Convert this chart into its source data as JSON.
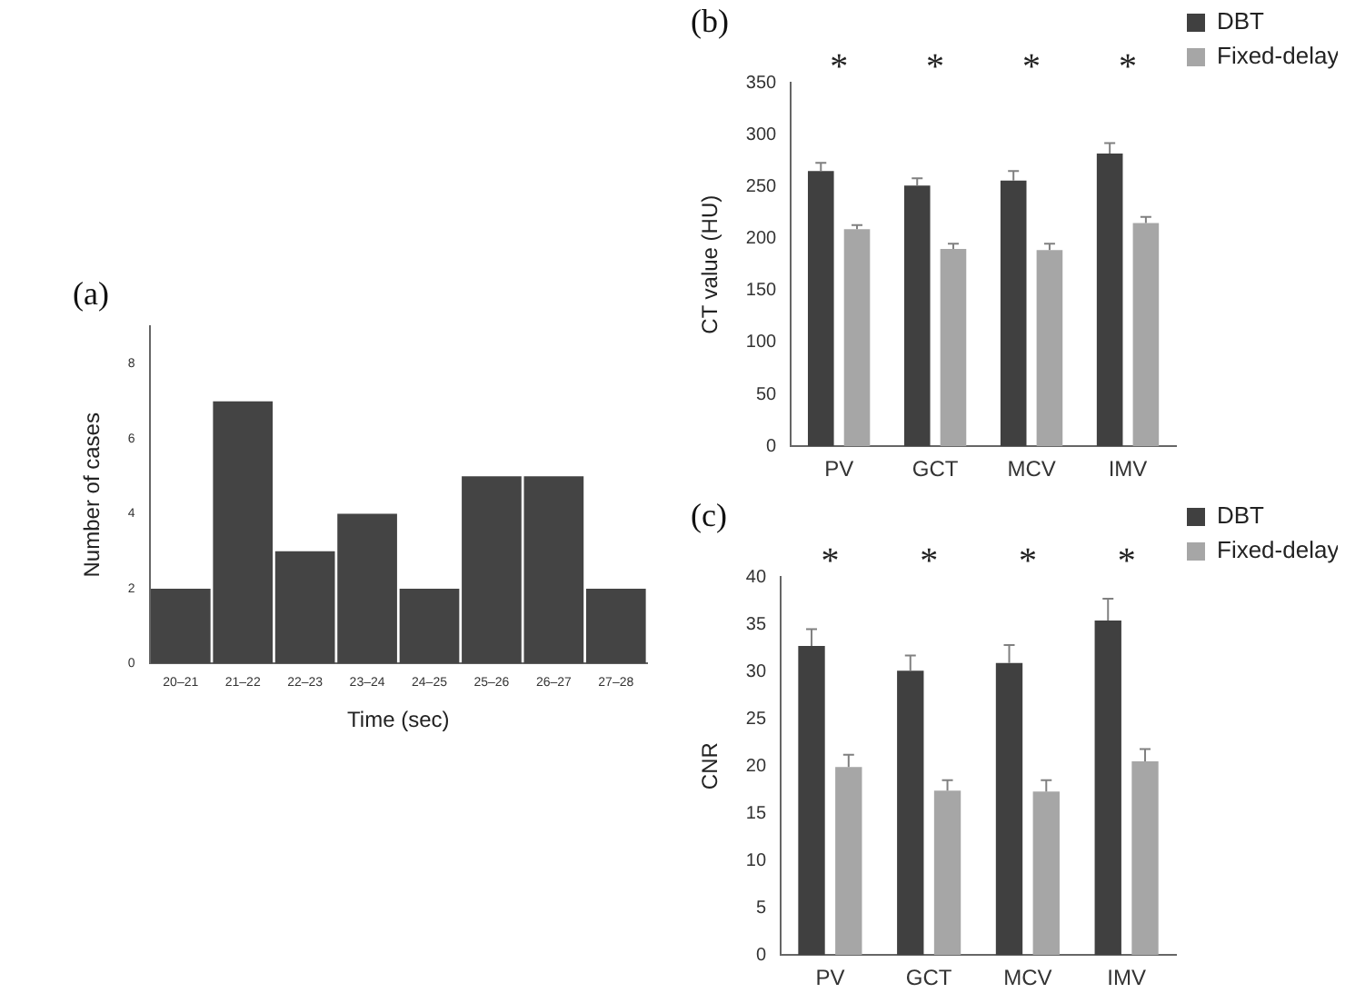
{
  "chart_data": [
    {
      "type": "bar",
      "title": "(a)",
      "xlabel": "Time (sec)",
      "ylabel": "Number of cases",
      "categories": [
        "20–21",
        "21–22",
        "22–23",
        "23–24",
        "24–25",
        "25–26",
        "26–27",
        "27–28"
      ],
      "values": [
        2,
        7,
        3,
        4,
        2,
        5,
        5,
        2
      ],
      "color": "#444444",
      "ylim": [
        0,
        9
      ],
      "yticks": [
        0,
        2,
        4,
        6,
        8
      ],
      "grid": false,
      "legend": false
    },
    {
      "type": "bar",
      "title": "(b)",
      "ylabel": "CT value (HU)",
      "categories": [
        "PV",
        "GCT",
        "MCV",
        "IMV"
      ],
      "series": [
        {
          "name": "DBT",
          "color": "#404040",
          "values": [
            265,
            251,
            256,
            282
          ],
          "errors": [
            [
              265,
              273
            ],
            [
              251,
              258
            ],
            [
              256,
              265
            ],
            [
              282,
              292
            ]
          ]
        },
        {
          "name": "Fixed-delay",
          "color": "#a6a6a6",
          "values": [
            209,
            190,
            189,
            215
          ],
          "errors": [
            [
              209,
              213
            ],
            [
              190,
              195
            ],
            [
              189,
              195
            ],
            [
              215,
              221
            ]
          ]
        }
      ],
      "ylim": [
        0,
        350
      ],
      "yticks": [
        0,
        50,
        100,
        150,
        200,
        250,
        300,
        350
      ],
      "grid": false,
      "legend": "right",
      "annotations": [
        "*",
        "*",
        "*",
        "*"
      ]
    },
    {
      "type": "bar",
      "title": "(c)",
      "ylabel": "CNR",
      "categories": [
        "PV",
        "GCT",
        "MCV",
        "IMV"
      ],
      "series": [
        {
          "name": "DBT",
          "color": "#404040",
          "values": [
            32.7,
            30.1,
            30.9,
            35.4
          ],
          "errors": [
            [
              32.7,
              34.5
            ],
            [
              30.1,
              31.7
            ],
            [
              30.9,
              32.8
            ],
            [
              35.4,
              37.7
            ]
          ]
        },
        {
          "name": "Fixed-delay",
          "color": "#a6a6a6",
          "values": [
            19.9,
            17.4,
            17.3,
            20.5
          ],
          "errors": [
            [
              19.9,
              21.2
            ],
            [
              17.4,
              18.5
            ],
            [
              17.3,
              18.5
            ],
            [
              20.5,
              21.8
            ]
          ]
        }
      ],
      "ylim": [
        0,
        40
      ],
      "yticks": [
        0,
        5,
        10,
        15,
        20,
        25,
        30,
        35,
        40
      ],
      "grid": false,
      "legend": "right",
      "annotations": [
        "*",
        "*",
        "*",
        "*"
      ]
    }
  ]
}
